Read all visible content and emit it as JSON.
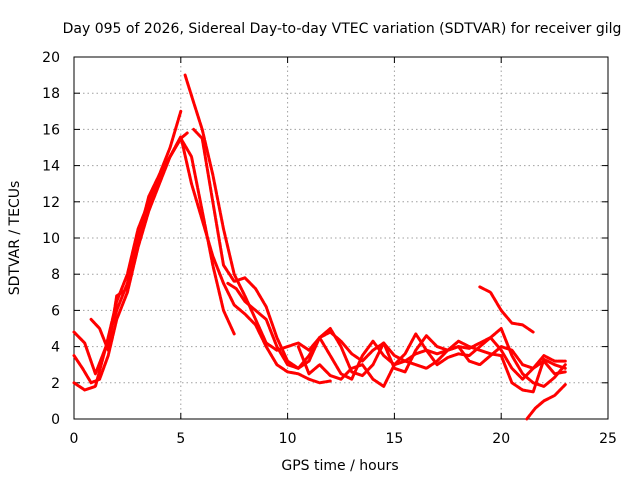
{
  "chart_data": {
    "type": "line",
    "title": "Day 095 of 2026, Sidereal Day-to-day VTEC variation (SDTVAR) for receiver gilg",
    "xlabel": "GPS time / hours",
    "ylabel": "SDTVAR / TECUs",
    "xlim": [
      0,
      25
    ],
    "ylim": [
      0,
      20
    ],
    "xticks": [
      0,
      5,
      10,
      15,
      20,
      25
    ],
    "yticks": [
      0,
      2,
      4,
      6,
      8,
      10,
      12,
      14,
      16,
      18,
      20
    ],
    "grid": true,
    "colors": {
      "series": "#ff0000"
    },
    "series": [
      {
        "name": "trace-1",
        "x": [
          0,
          0.5,
          1.0,
          1.5,
          2.0,
          2.5,
          3.0,
          3.5,
          4.0,
          4.5,
          5.0
        ],
        "y": [
          4.8,
          4.2,
          2.5,
          4.0,
          6.0,
          7.5,
          10.0,
          12.3,
          13.5,
          15.0,
          17.0
        ]
      },
      {
        "name": "trace-2",
        "x": [
          0,
          0.4,
          0.8,
          1.2,
          1.6,
          2.0,
          2.5,
          3.0,
          3.5,
          4.0,
          4.5,
          5.0,
          5.3
        ],
        "y": [
          3.5,
          2.8,
          2.0,
          2.2,
          3.5,
          5.5,
          7.0,
          9.5,
          11.5,
          13.0,
          14.5,
          15.5,
          15.8
        ]
      },
      {
        "name": "trace-3",
        "x": [
          0,
          0.5,
          1.0,
          1.5,
          2.0,
          2.5,
          3.0,
          3.5,
          4.0,
          4.5,
          5.0,
          5.5,
          6.0,
          6.5,
          7.0,
          7.5
        ],
        "y": [
          2.0,
          1.6,
          1.8,
          4.0,
          6.5,
          8.0,
          10.5,
          12.0,
          13.5,
          14.5,
          15.5,
          14.5,
          11.5,
          8.5,
          6.0,
          4.7
        ]
      },
      {
        "name": "trace-4",
        "x": [
          0.8,
          1.2,
          1.6,
          2.0,
          2.5,
          3.0,
          3.5,
          4.0,
          4.5,
          5.0,
          5.5,
          6.0,
          6.5,
          7.0,
          7.5,
          8.0,
          8.5,
          9.0,
          9.5,
          10.0,
          10.5,
          11.0,
          11.5,
          12.0
        ],
        "y": [
          5.5,
          5.0,
          3.8,
          6.8,
          7.2,
          10.0,
          11.8,
          13.3,
          14.5,
          15.6,
          13.0,
          11.0,
          9.0,
          7.5,
          6.3,
          5.8,
          5.2,
          4.0,
          3.0,
          2.6,
          2.5,
          2.2,
          2.0,
          2.1
        ]
      },
      {
        "name": "trace-5",
        "x": [
          5.2,
          5.6,
          6.0,
          6.5,
          7.0,
          7.5,
          8.0,
          8.5,
          9.0,
          9.5,
          10.0,
          10.5,
          11.0,
          11.5,
          12.0,
          12.5,
          13.0,
          13.5,
          14.0,
          14.5,
          15.0,
          15.5,
          16.0,
          16.5,
          17.0,
          17.5,
          18.0,
          18.5,
          19.0,
          19.5,
          20.0,
          20.5,
          21.0,
          21.5,
          22.0,
          22.5,
          23.0
        ],
        "y": [
          19.0,
          17.5,
          16.0,
          13.5,
          10.5,
          8.0,
          6.8,
          5.5,
          4.2,
          3.8,
          4.0,
          4.2,
          3.8,
          4.5,
          4.8,
          4.3,
          3.6,
          3.2,
          3.8,
          4.2,
          3.5,
          3.2,
          3.6,
          3.8,
          3.6,
          3.8,
          4.0,
          3.9,
          4.2,
          4.5,
          5.0,
          3.5,
          2.5,
          2.0,
          1.8,
          2.3,
          3.0
        ]
      },
      {
        "name": "trace-6",
        "x": [
          5.6,
          6.0,
          6.5,
          7.0,
          7.5,
          8.0,
          8.5,
          9.0,
          9.5,
          10.0,
          10.5,
          11.0,
          11.5,
          12.0,
          12.5,
          13.0,
          13.5,
          14.0,
          14.5,
          15.0,
          15.5,
          16.0,
          16.5,
          17.0,
          17.5,
          18.0,
          18.5,
          19.0,
          19.5,
          20.0,
          20.5,
          21.0,
          21.5,
          22.0,
          22.5,
          23.0
        ],
        "y": [
          16.0,
          15.5,
          12.0,
          8.5,
          7.6,
          7.8,
          7.2,
          6.2,
          4.5,
          3.2,
          2.8,
          3.2,
          4.5,
          5.0,
          4.0,
          2.6,
          2.4,
          3.0,
          4.2,
          2.8,
          2.6,
          3.8,
          4.6,
          4.0,
          3.8,
          4.3,
          4.0,
          3.8,
          3.6,
          3.5,
          2.0,
          1.6,
          1.5,
          3.3,
          3.0,
          2.8
        ]
      },
      {
        "name": "trace-7",
        "x": [
          7.2,
          7.6,
          8.0,
          8.5,
          9.0,
          9.5,
          10.0,
          10.5,
          11.0,
          11.5,
          12.0,
          12.5,
          13.0,
          13.5,
          14.0,
          14.5,
          15.0,
          15.5,
          16.0,
          16.5,
          17.0,
          17.5,
          18.0,
          18.5,
          19.0,
          19.5,
          20.0,
          20.5,
          21.0,
          21.5,
          22.0,
          22.5,
          23.0
        ],
        "y": [
          7.5,
          7.2,
          6.5,
          6.0,
          5.5,
          4.0,
          3.0,
          2.8,
          3.5,
          4.5,
          3.5,
          2.5,
          2.2,
          3.5,
          4.3,
          3.5,
          3.0,
          3.6,
          4.7,
          3.8,
          3.0,
          3.4,
          3.6,
          3.5,
          4.0,
          4.5,
          3.8,
          2.8,
          2.2,
          2.8,
          3.5,
          3.2,
          3.2
        ]
      },
      {
        "name": "trace-8",
        "x": [
          10.5,
          11.0,
          11.5,
          12.0,
          12.5,
          13.0,
          13.5,
          14.0,
          14.5,
          15.0,
          15.5,
          16.0,
          16.5,
          17.0,
          17.5,
          18.0,
          18.5,
          19.0,
          19.5,
          20.0,
          20.5,
          21.0,
          21.5,
          22.0,
          22.5,
          23.0
        ],
        "y": [
          4.0,
          2.5,
          3.0,
          2.4,
          2.2,
          2.8,
          3.0,
          2.2,
          1.8,
          3.0,
          3.2,
          3.0,
          2.8,
          3.2,
          3.8,
          4.0,
          3.2,
          3.0,
          3.5,
          4.0,
          3.8,
          3.0,
          2.8,
          3.2,
          2.5,
          2.6
        ]
      },
      {
        "name": "trace-9",
        "x": [
          19.0,
          19.5,
          20.0,
          20.5,
          21.0,
          21.5
        ],
        "y": [
          7.3,
          7.0,
          6.0,
          5.3,
          5.2,
          4.8
        ]
      },
      {
        "name": "trace-10",
        "x": [
          21.2,
          21.6,
          22.0,
          22.5,
          23.0
        ],
        "y": [
          0.0,
          0.6,
          1.0,
          1.3,
          1.9
        ]
      }
    ]
  }
}
